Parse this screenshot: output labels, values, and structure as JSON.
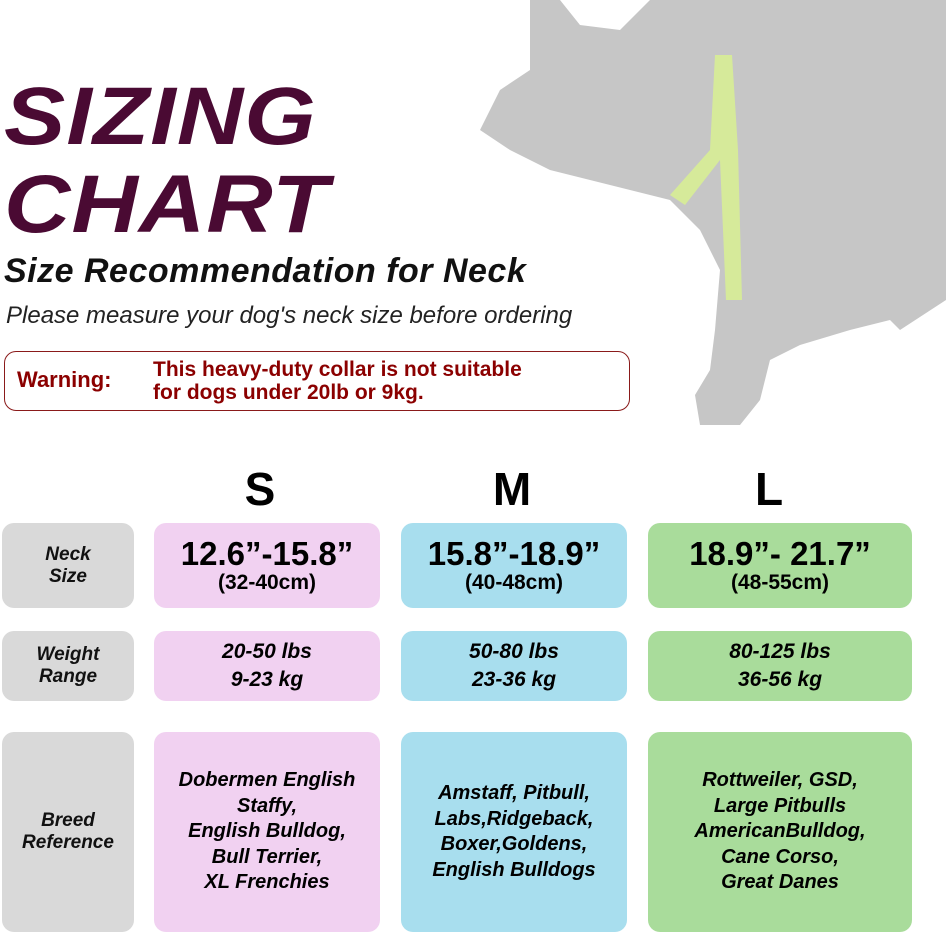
{
  "title_line1": "SIZING",
  "title_line2": "CHART",
  "subtitle": "Size Recommendation for Neck",
  "note": "Please measure your dog's neck size before ordering",
  "warning": {
    "label": "Warning:",
    "line1": "This heavy-duty collar is not suitable",
    "line2": "for dogs under 20lb or 9kg."
  },
  "colors": {
    "title": "#4a0a33",
    "warning": "#8b0000",
    "S": "#f1d1f1",
    "M": "#a8deee",
    "L": "#a9dc9b",
    "label": "#d9d9d9"
  },
  "sizes": [
    "S",
    "M",
    "L"
  ],
  "rows": {
    "neck": {
      "label1": "Neck",
      "label2": "Size",
      "values": [
        {
          "in": "12.6”-15.8”",
          "cm": "(32-40cm)"
        },
        {
          "in": "15.8”-18.9”",
          "cm": "(40-48cm)"
        },
        {
          "in": "18.9”- 21.7”",
          "cm": "(48-55cm)"
        }
      ]
    },
    "weight": {
      "label1": "Weight",
      "label2": "Range",
      "values": [
        {
          "lbs": "20-50 lbs",
          "kg": "9-23 kg"
        },
        {
          "lbs": "50-80 lbs",
          "kg": "23-36 kg"
        },
        {
          "lbs": "80-125 lbs",
          "kg": "36-56 kg"
        }
      ]
    },
    "breed": {
      "label1": "Breed",
      "label2": "Reference",
      "values": [
        [
          "Dobermen English",
          "Staffy,",
          "English Bulldog,",
          "Bull Terrier,",
          "XL Frenchies"
        ],
        [
          "Amstaff, Pitbull,",
          "Labs,Ridgeback,",
          "Boxer,Goldens,",
          "English Bulldogs"
        ],
        [
          "Rottweiler, GSD,",
          "Large Pitbulls",
          "AmericanBulldog,",
          "Cane Corso,",
          "Great Danes"
        ]
      ]
    }
  }
}
